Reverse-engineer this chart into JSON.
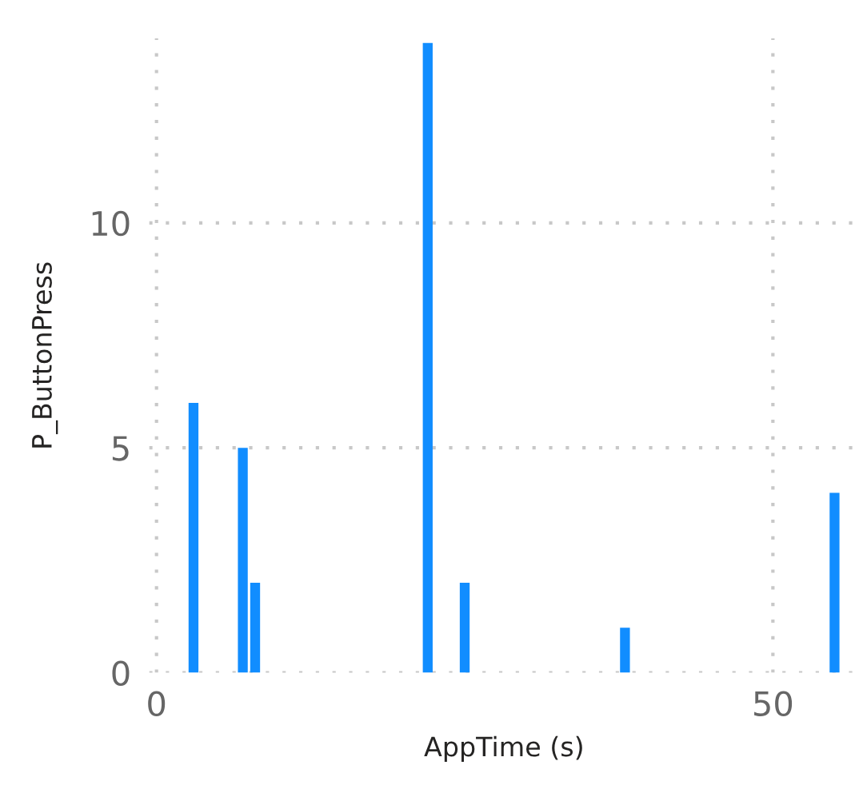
{
  "chart_data": {
    "type": "bar",
    "xlabel": "AppTime (s)",
    "ylabel": "P_ButtonPress",
    "x": [
      3,
      7,
      8,
      22,
      25,
      38,
      55
    ],
    "series": [
      {
        "color": "#118dff",
        "values": [
          6,
          5,
          2,
          14,
          2,
          1,
          4
        ]
      }
    ],
    "xlim": [
      -0.6,
      57
    ],
    "xticks": [
      0,
      50
    ],
    "ylim": [
      0,
      14.1
    ],
    "yticks": [
      0,
      5,
      10
    ],
    "grid": true,
    "line_style": "dotted",
    "legend": false
  }
}
